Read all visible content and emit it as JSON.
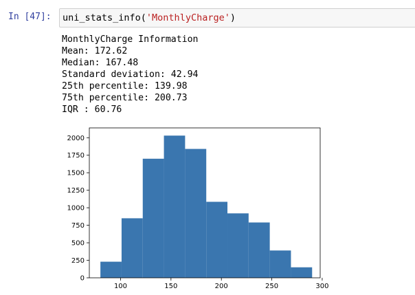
{
  "cell": {
    "prompt": "In [47]:",
    "code_func": "uni_stats_info(",
    "code_arg": "'MonthlyCharge'",
    "code_close": ")"
  },
  "output": {
    "lines": [
      "MonthlyCharge Information",
      "Mean: 172.62",
      "Median: 167.48",
      "Standard deviation: 42.94",
      "25th percentile: 139.98",
      "75th percentile: 200.73",
      "IQR : 60.76"
    ]
  },
  "colors": {
    "bar": "#3a76af",
    "prompt": "#303f9f",
    "string": "#ba2121"
  },
  "chart_data": {
    "type": "bar",
    "title": "",
    "xlabel": "",
    "ylabel": "",
    "bin_edges": [
      80,
      101,
      122,
      143,
      164,
      185,
      206,
      227,
      248,
      269,
      290
    ],
    "values": [
      230,
      850,
      1700,
      2030,
      1840,
      1085,
      920,
      790,
      390,
      150
    ],
    "xlim": [
      69,
      298
    ],
    "ylim": [
      0,
      2140
    ],
    "xticks": [
      100,
      150,
      200,
      250,
      300
    ],
    "yticks": [
      0,
      250,
      500,
      750,
      1000,
      1250,
      1500,
      1750,
      2000
    ],
    "xtick_labels": [
      "100",
      "150",
      "200",
      "250",
      "300"
    ],
    "ytick_labels": [
      "0",
      "250",
      "500",
      "750",
      "1000",
      "1250",
      "1500",
      "1750",
      "2000"
    ],
    "grid": false
  }
}
